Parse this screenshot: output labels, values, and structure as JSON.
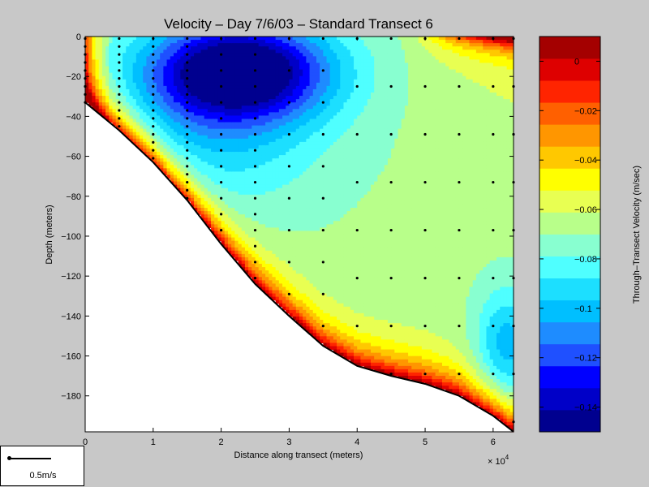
{
  "chart_data": {
    "type": "heatmap",
    "title": "Velocity – Day 7/6/03 – Standard Transect 6",
    "xlabel": "Distance along transect (meters)",
    "ylabel": "Depth (meters)",
    "x_multiplier_label": "× 10",
    "x_multiplier_exponent": "4",
    "xlim": [
      0,
      6.3
    ],
    "ylim": [
      -198,
      0
    ],
    "x_ticks": [
      "0",
      "1",
      "2",
      "3",
      "4",
      "5",
      "6"
    ],
    "y_ticks": [
      "0",
      "−20",
      "−40",
      "−60",
      "−80",
      "−100",
      "−120",
      "−140",
      "−160",
      "−180"
    ],
    "x_tick_values": [
      0,
      1,
      2,
      3,
      4,
      5,
      6
    ],
    "y_tick_values": [
      0,
      -20,
      -40,
      -60,
      -80,
      -100,
      -120,
      -140,
      -160,
      -180
    ],
    "colorbar": {
      "label": "Through–Transect Velocity (m/sec)",
      "range": [
        -0.15,
        0.01
      ],
      "ticks": [
        "0",
        "−0.02",
        "−0.04",
        "−0.06",
        "−0.08",
        "−0.1",
        "−0.12",
        "−0.14"
      ],
      "tick_values": [
        0,
        -0.02,
        -0.04,
        -0.06,
        -0.08,
        -0.1,
        -0.12,
        -0.14
      ],
      "colors": [
        "#00008f",
        "#0000c8",
        "#0000ff",
        "#1f50ff",
        "#1e8cff",
        "#00bfff",
        "#1cdfff",
        "#4fffff",
        "#88ffd0",
        "#b8ff8a",
        "#e8ff52",
        "#ffff00",
        "#ffc800",
        "#ff9600",
        "#ff6000",
        "#ff2400",
        "#de0000",
        "#a40000"
      ]
    },
    "bottom_profile": [
      [
        0,
        -33
      ],
      [
        0.5,
        -47
      ],
      [
        1,
        -63
      ],
      [
        1.5,
        -82
      ],
      [
        2,
        -104
      ],
      [
        2.5,
        -124
      ],
      [
        3,
        -140
      ],
      [
        3.5,
        -155
      ],
      [
        4,
        -165
      ],
      [
        4.5,
        -170
      ],
      [
        5,
        -174
      ],
      [
        5.5,
        -180
      ],
      [
        6,
        -190
      ],
      [
        6.3,
        -198
      ]
    ],
    "core": {
      "x": 2.3,
      "depth": -17,
      "min_velocity": -0.15
    },
    "sample_stations_x": [
      0,
      0.5,
      1,
      1.5,
      2,
      2.5,
      3,
      3.5,
      4,
      4.5,
      5,
      5.5,
      6,
      6.3
    ],
    "scale_legend": "0.5m/s"
  }
}
